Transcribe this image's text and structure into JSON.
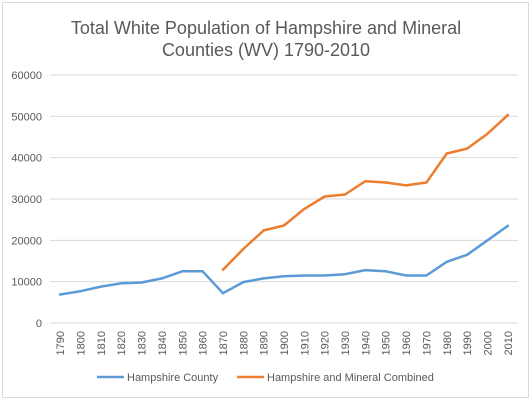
{
  "chart_data": {
    "type": "line",
    "title_lines": [
      "Total White Population of Hampshire and Mineral",
      "Counties (WV) 1790-2010"
    ],
    "xlabel": "",
    "ylabel": "",
    "ylim": [
      0,
      60000
    ],
    "y_ticks": [
      "0",
      "10000",
      "20000",
      "30000",
      "40000",
      "50000",
      "60000"
    ],
    "categories": [
      "1790",
      "1800",
      "1810",
      "1820",
      "1830",
      "1840",
      "1850",
      "1860",
      "1870",
      "1880",
      "1890",
      "1900",
      "1910",
      "1920",
      "1930",
      "1940",
      "1950",
      "1960",
      "1970",
      "1980",
      "1990",
      "2000",
      "2010"
    ],
    "grid": true,
    "legend_position": "bottom",
    "series": [
      {
        "name": "Hampshire County",
        "color": "#5b9bd5",
        "values": [
          6900,
          7700,
          8800,
          9600,
          9800,
          10800,
          12500,
          12500,
          7200,
          9900,
          10800,
          11300,
          11500,
          11500,
          11800,
          12800,
          12500,
          11500,
          11500,
          14800,
          16500,
          20000,
          23500
        ]
      },
      {
        "name": "Hampshire and Mineral Combined",
        "color": "#ed7d31",
        "values": [
          null,
          null,
          null,
          null,
          null,
          null,
          null,
          null,
          12900,
          17900,
          22400,
          23600,
          27600,
          30600,
          31100,
          34300,
          34000,
          33300,
          34000,
          41000,
          42200,
          45800,
          50300
        ]
      }
    ]
  }
}
